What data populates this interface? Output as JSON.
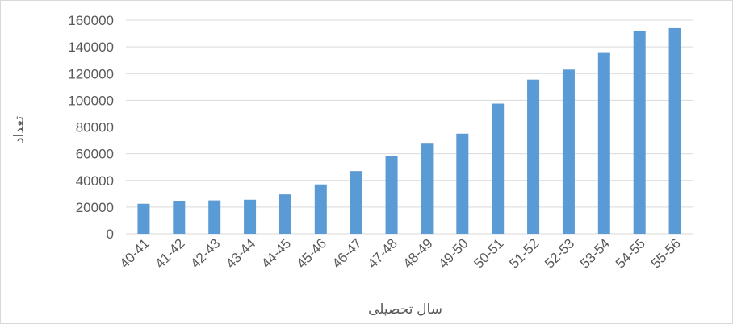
{
  "chart_data": {
    "type": "bar",
    "title": "",
    "xlabel": "سال تحصیلی",
    "ylabel": "تعداد",
    "categories": [
      "40-41",
      "41-42",
      "42-43",
      "43-44",
      "44-45",
      "45-46",
      "46-47",
      "47-48",
      "48-49",
      "49-50",
      "50-51",
      "51-52",
      "52-53",
      "53-54",
      "54-55",
      "55-56"
    ],
    "values": [
      22500,
      24500,
      25000,
      25500,
      29500,
      37000,
      47000,
      58000,
      67500,
      75000,
      97500,
      115500,
      123000,
      135500,
      152000,
      154000
    ],
    "ylim": [
      0,
      160000
    ],
    "yticks": [
      "0",
      "20000",
      "40000",
      "60000",
      "80000",
      "100000",
      "120000",
      "140000",
      "160000"
    ],
    "grid": true,
    "legend": "none",
    "colors": {
      "bar": "#5b9bd5",
      "grid": "#d9d9d9",
      "text": "#595959"
    }
  }
}
